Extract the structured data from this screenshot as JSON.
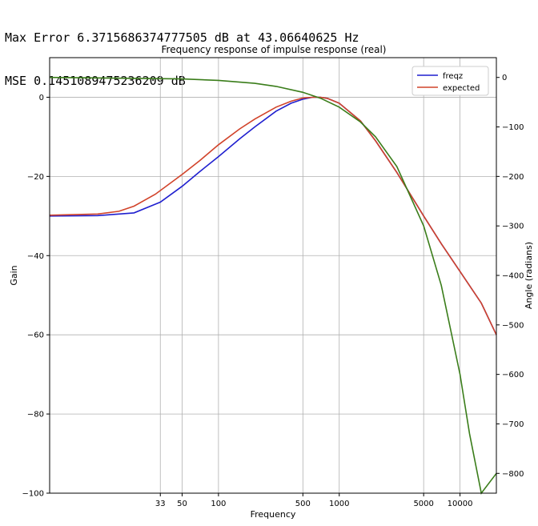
{
  "header": {
    "line1": "Max Error 6.3715686374777505 dB at 43.06640625 Hz",
    "line2": "MSE 0.1451089475236209 dB"
  },
  "chart_data": {
    "type": "line",
    "title": "Frequency response of impulse response (real)",
    "xlabel": "Frequency",
    "ylabel": "Gain",
    "y2label": "Angle (radians)",
    "xscale": "log",
    "xlim": [
      4,
      20000
    ],
    "ylim": [
      -100,
      10
    ],
    "y2lim": [
      -840,
      40
    ],
    "xticks": [
      33,
      50,
      100,
      500,
      1000,
      5000,
      10000
    ],
    "yticks": [
      0,
      -20,
      -40,
      -60,
      -80,
      -100
    ],
    "y2ticks": [
      0,
      -100,
      -200,
      -300,
      -400,
      -500,
      -600,
      -700,
      -800
    ],
    "grid": true,
    "legend": "top-right",
    "colors": {
      "freqz": "#1f1fcf",
      "expected": "#d1432a",
      "angle": "#3a7d1a",
      "y2label": "#3a7d1a"
    },
    "series": [
      {
        "name": "freqz",
        "axis": "left",
        "x": [
          4,
          10,
          20,
          33,
          50,
          70,
          100,
          150,
          200,
          300,
          400,
          500,
          600,
          700,
          800,
          1000,
          1500,
          2000,
          3000,
          5000,
          7000,
          10000,
          15000,
          20000
        ],
        "y": [
          -30,
          -29.9,
          -29.2,
          -26.5,
          -22.5,
          -18.8,
          -15,
          -10.5,
          -7.5,
          -3.5,
          -1.5,
          -0.5,
          0,
          0,
          -0.3,
          -1.5,
          -6,
          -11,
          -19,
          -30,
          -37,
          -44,
          -52,
          -60
        ]
      },
      {
        "name": "expected",
        "axis": "left",
        "x": [
          4,
          10,
          15,
          20,
          30,
          50,
          70,
          100,
          150,
          200,
          300,
          400,
          500,
          600,
          700,
          800,
          1000,
          1500,
          2000,
          3000,
          5000,
          7000,
          10000,
          15000,
          20000
        ],
        "y": [
          -29.8,
          -29.5,
          -28.8,
          -27.5,
          -24.5,
          -19.5,
          -16,
          -12,
          -8,
          -5.5,
          -2.5,
          -1,
          -0.2,
          0,
          0,
          -0.3,
          -1.5,
          -6,
          -11,
          -19,
          -30,
          -37,
          -44,
          -52,
          -60
        ]
      },
      {
        "name": "",
        "axis": "right",
        "x": [
          4,
          50,
          100,
          200,
          300,
          500,
          700,
          1000,
          1500,
          2000,
          3000,
          5000,
          7000,
          10000,
          12000,
          15000,
          20000
        ],
        "y": [
          0,
          -3,
          -6,
          -12,
          -18,
          -30,
          -42,
          -60,
          -90,
          -120,
          -180,
          -300,
          -420,
          -600,
          -720,
          -840,
          -800
        ]
      }
    ]
  }
}
